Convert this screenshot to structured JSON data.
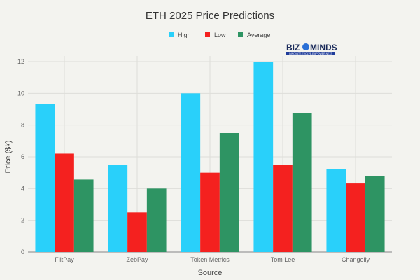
{
  "chart_data": {
    "type": "bar",
    "title": "ETH 2025 Price Predictions",
    "xlabel": "Source",
    "ylabel": "Price ($k)",
    "ylim": [
      0,
      12
    ],
    "yticks": [
      0,
      2,
      4,
      6,
      8,
      10,
      12
    ],
    "grid": true,
    "legend_position": "top-center",
    "categories": [
      "FlitPay",
      "ZebPay",
      "Token Metrics",
      "Tom Lee",
      "Changelly"
    ],
    "series": [
      {
        "name": "High",
        "color": "#29d0fa",
        "values": [
          9.35,
          5.5,
          10.0,
          12.0,
          5.24
        ]
      },
      {
        "name": "Low",
        "color": "#f4211f",
        "values": [
          6.2,
          2.5,
          5.0,
          5.5,
          4.32
        ]
      },
      {
        "name": "Average",
        "color": "#2e9463",
        "values": [
          4.57,
          4.0,
          7.5,
          8.75,
          4.8
        ]
      }
    ]
  },
  "logo": {
    "text": "BIZMINDS",
    "tagline": "INNOVATE.EVOLVE.EMPOWER.NEXT"
  }
}
